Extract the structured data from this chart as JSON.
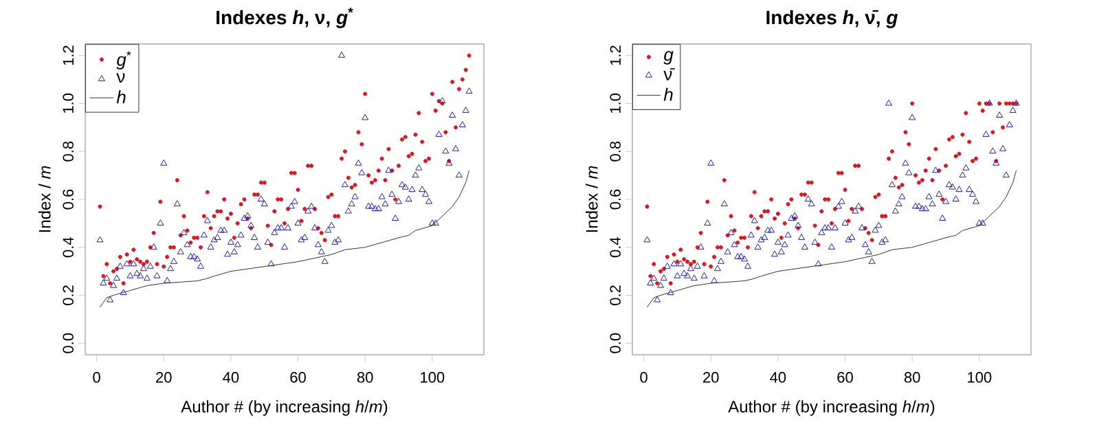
{
  "chart_data": [
    {
      "type": "scatter",
      "title": "Indexes *h*, ν, *g*$^{*}$",
      "xlabel": "Author # (by increasing *h*/*m*)",
      "ylabel": "Index / *m*",
      "legend": "top left",
      "xlim": [
        -3.4,
        115.4
      ],
      "ylim": [
        -0.048,
        1.248
      ],
      "xticks": [
        0,
        20,
        40,
        60,
        80,
        100
      ],
      "yticks": [
        {
          "value": 0,
          "label": "0.0"
        },
        {
          "value": 0.2,
          "label": "0.2"
        },
        {
          "value": 0.4,
          "label": "0.4"
        },
        {
          "value": 0.6,
          "label": "0.6"
        },
        {
          "value": 0.8,
          "label": "0.8"
        },
        {
          "value": 1.0,
          "label": "1.0"
        },
        {
          "value": 1.2,
          "label": "1.2"
        }
      ],
      "x": [
        1,
        2,
        3,
        4,
        5,
        6,
        7,
        8,
        9,
        10,
        11,
        12,
        13,
        14,
        15,
        16,
        17,
        18,
        19,
        20,
        21,
        22,
        23,
        24,
        25,
        26,
        27,
        28,
        29,
        30,
        31,
        32,
        33,
        34,
        35,
        36,
        37,
        38,
        39,
        40,
        41,
        42,
        43,
        44,
        45,
        46,
        47,
        48,
        49,
        50,
        51,
        52,
        53,
        54,
        55,
        56,
        57,
        58,
        59,
        60,
        61,
        62,
        63,
        64,
        65,
        66,
        67,
        68,
        69,
        70,
        71,
        72,
        73,
        74,
        75,
        76,
        77,
        78,
        79,
        80,
        81,
        82,
        83,
        84,
        85,
        86,
        87,
        88,
        89,
        90,
        91,
        92,
        93,
        94,
        95,
        96,
        97,
        98,
        99,
        100,
        101,
        102,
        103,
        104,
        105,
        106,
        107,
        108,
        109,
        110,
        111
      ],
      "series": [
        {
          "name": "*g*$^{*}$",
          "type": "scatter",
          "marker": "circle",
          "color": "#e0141c",
          "values": [
            0.57,
            0.28,
            0.33,
            0.25,
            0.3,
            0.31,
            0.36,
            0.25,
            0.37,
            0.34,
            0.39,
            0.35,
            0.34,
            0.33,
            0.34,
            0.4,
            0.46,
            0.33,
            0.59,
            0.32,
            0.36,
            0.4,
            0.4,
            0.68,
            0.45,
            0.53,
            0.47,
            0.42,
            0.44,
            0.44,
            0.4,
            0.53,
            0.63,
            0.48,
            0.53,
            0.55,
            0.55,
            0.6,
            0.52,
            0.54,
            0.44,
            0.5,
            0.58,
            0.6,
            0.52,
            0.48,
            0.62,
            0.62,
            0.67,
            0.67,
            0.49,
            0.41,
            0.55,
            0.6,
            0.6,
            0.5,
            0.56,
            0.71,
            0.71,
            0.64,
            0.51,
            0.56,
            0.74,
            0.74,
            0.56,
            0.48,
            0.46,
            0.43,
            0.61,
            0.62,
            0.53,
            0.53,
            0.77,
            0.8,
            0.69,
            0.65,
            0.66,
            0.88,
            0.83,
            1.04,
            0.7,
            0.67,
            0.68,
            0.72,
            0.77,
            0.68,
            0.81,
            0.72,
            0.6,
            0.74,
            0.85,
            0.86,
            0.78,
            0.79,
            0.87,
            0.96,
            0.84,
            0.76,
            0.77,
            1.04,
            0.97,
            1.01,
            1.0,
            0.88,
            0.76,
            1.09,
            0.9,
            1.06,
            1.1,
            1.14,
            1.2
          ]
        },
        {
          "name": "ν",
          "type": "scatter",
          "marker": "triangle",
          "color": "#1a1ac8",
          "values": [
            0.43,
            0.25,
            0.27,
            0.18,
            0.24,
            0.27,
            0.32,
            0.21,
            0.33,
            0.28,
            0.33,
            0.29,
            0.28,
            0.31,
            0.27,
            0.32,
            0.4,
            0.28,
            0.5,
            0.75,
            0.26,
            0.31,
            0.34,
            0.58,
            0.38,
            0.46,
            0.41,
            0.36,
            0.36,
            0.35,
            0.32,
            0.45,
            0.51,
            0.4,
            0.43,
            0.44,
            0.47,
            0.47,
            0.37,
            0.42,
            0.38,
            0.41,
            0.45,
            0.52,
            0.53,
            0.49,
            0.44,
            0.4,
            0.6,
            0.58,
            0.42,
            0.33,
            0.46,
            0.48,
            0.48,
            0.4,
            0.48,
            0.57,
            0.59,
            0.5,
            0.43,
            0.44,
            0.55,
            0.57,
            0.48,
            0.41,
            0.38,
            0.34,
            0.47,
            0.49,
            0.42,
            0.43,
            1.2,
            0.66,
            0.55,
            0.58,
            0.61,
            0.75,
            0.71,
            0.94,
            0.57,
            0.57,
            0.56,
            0.56,
            0.61,
            0.58,
            0.72,
            0.62,
            0.52,
            0.59,
            0.66,
            0.65,
            0.6,
            0.64,
            0.7,
            0.73,
            0.64,
            0.62,
            0.59,
            0.5,
            0.5,
            0.87,
            1.01,
            0.8,
            0.75,
            0.95,
            0.81,
            0.7,
            0.91,
            0.97,
            1.05
          ]
        },
        {
          "name": "*h*",
          "type": "line",
          "color": "#000000",
          "x": [
            1,
            3,
            5,
            10,
            15,
            20,
            25,
            30,
            33,
            35,
            40,
            45,
            50,
            55,
            60,
            65,
            70,
            74,
            80,
            85,
            90,
            93,
            95,
            100,
            103,
            106,
            108,
            110,
            111
          ],
          "values": [
            0.15,
            0.19,
            0.2,
            0.22,
            0.24,
            0.25,
            0.255,
            0.26,
            0.27,
            0.28,
            0.3,
            0.31,
            0.32,
            0.33,
            0.34,
            0.355,
            0.37,
            0.39,
            0.4,
            0.42,
            0.44,
            0.45,
            0.47,
            0.49,
            0.53,
            0.57,
            0.61,
            0.67,
            0.72
          ]
        }
      ]
    },
    {
      "type": "scatter",
      "title": "Indexes *h*, ν̄, *g*",
      "xlabel": "Author # (by increasing *h*/*m*)",
      "ylabel": "Index / *m*",
      "legend": "top left",
      "xlim": [
        -3.4,
        115.4
      ],
      "ylim": [
        -0.048,
        1.248
      ],
      "xticks": [
        0,
        20,
        40,
        60,
        80,
        100
      ],
      "yticks": [
        {
          "value": 0,
          "label": "0.0"
        },
        {
          "value": 0.2,
          "label": "0.2"
        },
        {
          "value": 0.4,
          "label": "0.4"
        },
        {
          "value": 0.6,
          "label": "0.6"
        },
        {
          "value": 0.8,
          "label": "0.8"
        },
        {
          "value": 1.0,
          "label": "1.0"
        },
        {
          "value": 1.2,
          "label": "1.2"
        }
      ],
      "x": [
        1,
        2,
        3,
        4,
        5,
        6,
        7,
        8,
        9,
        10,
        11,
        12,
        13,
        14,
        15,
        16,
        17,
        18,
        19,
        20,
        21,
        22,
        23,
        24,
        25,
        26,
        27,
        28,
        29,
        30,
        31,
        32,
        33,
        34,
        35,
        36,
        37,
        38,
        39,
        40,
        41,
        42,
        43,
        44,
        45,
        46,
        47,
        48,
        49,
        50,
        51,
        52,
        53,
        54,
        55,
        56,
        57,
        58,
        59,
        60,
        61,
        62,
        63,
        64,
        65,
        66,
        67,
        68,
        69,
        70,
        71,
        72,
        73,
        74,
        75,
        76,
        77,
        78,
        79,
        80,
        81,
        82,
        83,
        84,
        85,
        86,
        87,
        88,
        89,
        90,
        91,
        92,
        93,
        94,
        95,
        96,
        97,
        98,
        99,
        100,
        101,
        102,
        103,
        104,
        105,
        106,
        107,
        108,
        109,
        110,
        111
      ],
      "series": [
        {
          "name": "*g*",
          "type": "scatter",
          "marker": "circle",
          "color": "#e0141c",
          "values": [
            0.57,
            0.28,
            0.33,
            0.25,
            0.3,
            0.31,
            0.36,
            0.25,
            0.37,
            0.34,
            0.39,
            0.35,
            0.34,
            0.33,
            0.34,
            0.4,
            0.46,
            0.33,
            0.59,
            0.32,
            0.36,
            0.4,
            0.4,
            0.68,
            0.45,
            0.53,
            0.47,
            0.42,
            0.44,
            0.44,
            0.4,
            0.53,
            0.63,
            0.48,
            0.53,
            0.55,
            0.55,
            0.6,
            0.52,
            0.54,
            0.44,
            0.5,
            0.58,
            0.6,
            0.52,
            0.48,
            0.62,
            0.62,
            0.67,
            0.67,
            0.49,
            0.41,
            0.55,
            0.6,
            0.6,
            0.5,
            0.56,
            0.71,
            0.71,
            0.64,
            0.51,
            0.56,
            0.74,
            0.74,
            0.56,
            0.48,
            0.46,
            0.43,
            0.61,
            0.62,
            0.53,
            0.53,
            0.77,
            0.8,
            0.69,
            0.65,
            0.66,
            0.88,
            0.83,
            1.0,
            0.7,
            0.67,
            0.68,
            0.72,
            0.77,
            0.68,
            0.81,
            0.72,
            0.6,
            0.74,
            0.85,
            0.86,
            0.78,
            0.79,
            0.87,
            0.96,
            0.84,
            0.76,
            0.77,
            1.0,
            0.97,
            1.0,
            1.0,
            0.88,
            0.76,
            1.0,
            0.9,
            1.0,
            1.0,
            1.0,
            1.0
          ]
        },
        {
          "name": "ν̄",
          "type": "scatter",
          "marker": "triangle",
          "color": "#1a1ac8",
          "values": [
            0.43,
            0.25,
            0.27,
            0.18,
            0.24,
            0.27,
            0.32,
            0.21,
            0.33,
            0.28,
            0.33,
            0.29,
            0.28,
            0.31,
            0.27,
            0.32,
            0.4,
            0.28,
            0.5,
            0.75,
            0.26,
            0.31,
            0.34,
            0.58,
            0.38,
            0.46,
            0.41,
            0.36,
            0.36,
            0.35,
            0.32,
            0.45,
            0.51,
            0.4,
            0.43,
            0.44,
            0.47,
            0.47,
            0.37,
            0.42,
            0.38,
            0.41,
            0.45,
            0.52,
            0.53,
            0.49,
            0.44,
            0.4,
            0.6,
            0.58,
            0.42,
            0.33,
            0.46,
            0.48,
            0.48,
            0.4,
            0.48,
            0.57,
            0.59,
            0.5,
            0.43,
            0.44,
            0.55,
            0.57,
            0.48,
            0.41,
            0.38,
            0.34,
            0.47,
            0.49,
            0.42,
            0.43,
            1.0,
            0.66,
            0.55,
            0.58,
            0.61,
            0.75,
            0.71,
            0.94,
            0.57,
            0.57,
            0.56,
            0.56,
            0.61,
            0.58,
            0.72,
            0.62,
            0.52,
            0.59,
            0.66,
            0.65,
            0.6,
            0.64,
            0.7,
            0.73,
            0.64,
            0.62,
            0.59,
            0.5,
            0.5,
            0.87,
            1.0,
            0.8,
            0.75,
            0.95,
            0.81,
            0.7,
            0.91,
            0.97,
            1.0
          ]
        },
        {
          "name": "*h*",
          "type": "line",
          "color": "#000000",
          "x": [
            1,
            3,
            5,
            10,
            15,
            20,
            25,
            30,
            33,
            35,
            40,
            45,
            50,
            55,
            60,
            65,
            70,
            74,
            80,
            85,
            90,
            93,
            95,
            100,
            103,
            106,
            108,
            110,
            111
          ],
          "values": [
            0.15,
            0.19,
            0.2,
            0.22,
            0.24,
            0.25,
            0.255,
            0.26,
            0.27,
            0.28,
            0.3,
            0.31,
            0.32,
            0.33,
            0.34,
            0.355,
            0.37,
            0.39,
            0.4,
            0.42,
            0.44,
            0.45,
            0.47,
            0.49,
            0.53,
            0.57,
            0.61,
            0.67,
            0.72
          ]
        }
      ]
    }
  ]
}
